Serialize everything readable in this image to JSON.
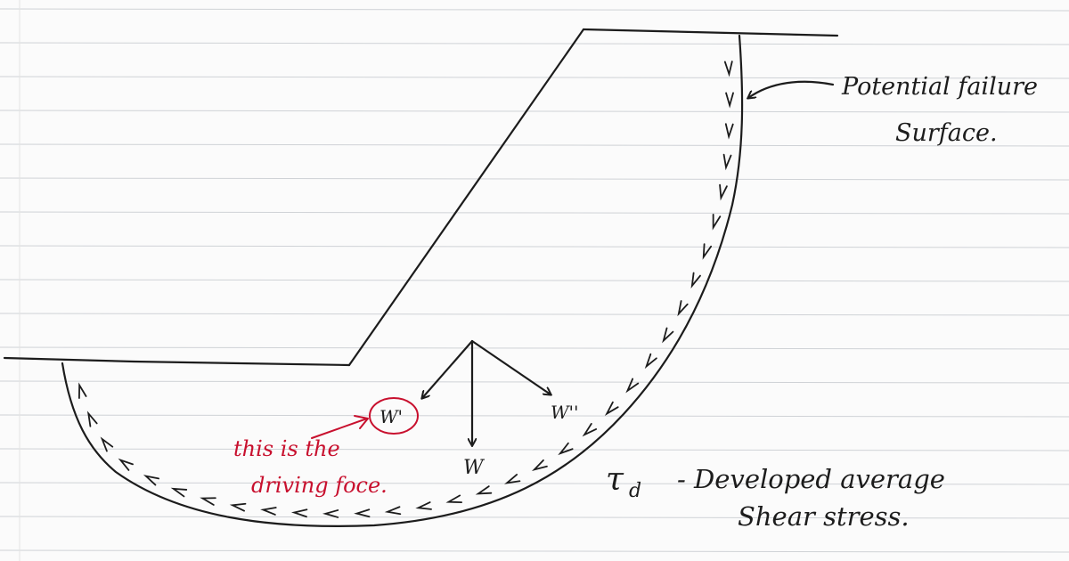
{
  "labels": {
    "failure_surface_line1": "Potential failure",
    "failure_surface_line2": "Surface.",
    "w_prime": "W'",
    "w_double_prime": "W''",
    "w": "W",
    "driving_line1": "this is the",
    "driving_line2": "driving foce.",
    "tau": "τ",
    "tau_sub": "d",
    "stress_line1": "- Developed average",
    "stress_line2": "Shear stress."
  },
  "colors": {
    "ink": "#1c1c1c",
    "red_ink": "#c8102e",
    "rule": "#cfd2d6",
    "paper": "#fbfbfb"
  }
}
